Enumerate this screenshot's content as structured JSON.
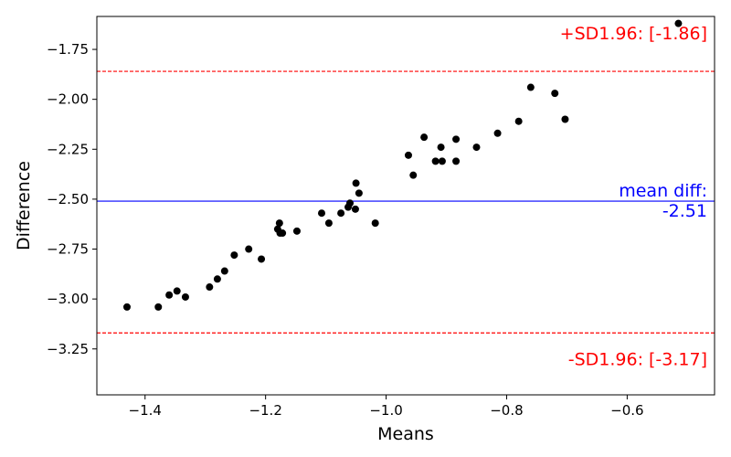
{
  "chart_data": {
    "type": "scatter",
    "title": "",
    "xlabel": "Means",
    "ylabel": "Difference",
    "xlim": [
      -1.48,
      -0.455
    ],
    "ylim": [
      -3.48,
      -1.585
    ],
    "x_ticks": [
      -1.4,
      -1.2,
      -1.0,
      -0.8,
      -0.6
    ],
    "x_tick_labels": [
      "−1.4",
      "−1.2",
      "−1.0",
      "−0.8",
      "−0.6"
    ],
    "y_ticks": [
      -1.75,
      -2.0,
      -2.25,
      -2.5,
      -2.75,
      -3.0,
      -3.25
    ],
    "y_tick_labels": [
      "−1.75",
      "−2.00",
      "−2.25",
      "−2.50",
      "−2.75",
      "−3.00",
      "−3.25"
    ],
    "grid": false,
    "points": [
      {
        "x": -1.43,
        "y": -3.04
      },
      {
        "x": -1.378,
        "y": -3.04
      },
      {
        "x": -1.36,
        "y": -2.98
      },
      {
        "x": -1.347,
        "y": -2.96
      },
      {
        "x": -1.333,
        "y": -2.99
      },
      {
        "x": -1.293,
        "y": -2.94
      },
      {
        "x": -1.28,
        "y": -2.9
      },
      {
        "x": -1.268,
        "y": -2.86
      },
      {
        "x": -1.252,
        "y": -2.78
      },
      {
        "x": -1.228,
        "y": -2.75
      },
      {
        "x": -1.207,
        "y": -2.8
      },
      {
        "x": -1.18,
        "y": -2.65
      },
      {
        "x": -1.177,
        "y": -2.62
      },
      {
        "x": -1.176,
        "y": -2.67
      },
      {
        "x": -1.172,
        "y": -2.67
      },
      {
        "x": -1.148,
        "y": -2.66
      },
      {
        "x": -1.107,
        "y": -2.57
      },
      {
        "x": -1.095,
        "y": -2.62
      },
      {
        "x": -1.075,
        "y": -2.57
      },
      {
        "x": -1.063,
        "y": -2.54
      },
      {
        "x": -1.06,
        "y": -2.52
      },
      {
        "x": -1.051,
        "y": -2.55
      },
      {
        "x": -1.05,
        "y": -2.42
      },
      {
        "x": -1.045,
        "y": -2.47
      },
      {
        "x": -1.018,
        "y": -2.62
      },
      {
        "x": -0.963,
        "y": -2.28
      },
      {
        "x": -0.955,
        "y": -2.38
      },
      {
        "x": -0.937,
        "y": -2.19
      },
      {
        "x": -0.918,
        "y": -2.31
      },
      {
        "x": -0.909,
        "y": -2.24
      },
      {
        "x": -0.907,
        "y": -2.31
      },
      {
        "x": -0.884,
        "y": -2.2
      },
      {
        "x": -0.884,
        "y": -2.31
      },
      {
        "x": -0.85,
        "y": -2.24
      },
      {
        "x": -0.815,
        "y": -2.17
      },
      {
        "x": -0.78,
        "y": -2.11
      },
      {
        "x": -0.76,
        "y": -1.94
      },
      {
        "x": -0.72,
        "y": -1.97
      },
      {
        "x": -0.703,
        "y": -2.1
      },
      {
        "x": -0.515,
        "y": -1.62
      }
    ],
    "mean_line": {
      "y": -2.51,
      "color": "#0000ff",
      "label_line1": "mean diff:",
      "label_line2": "-2.51"
    },
    "upper_loa": {
      "y": -1.86,
      "color": "#ff0000",
      "label": "+SD1.96: [-1.86]"
    },
    "lower_loa": {
      "y": -3.17,
      "color": "#ff0000",
      "label": "-SD1.96: [-3.17]"
    }
  }
}
